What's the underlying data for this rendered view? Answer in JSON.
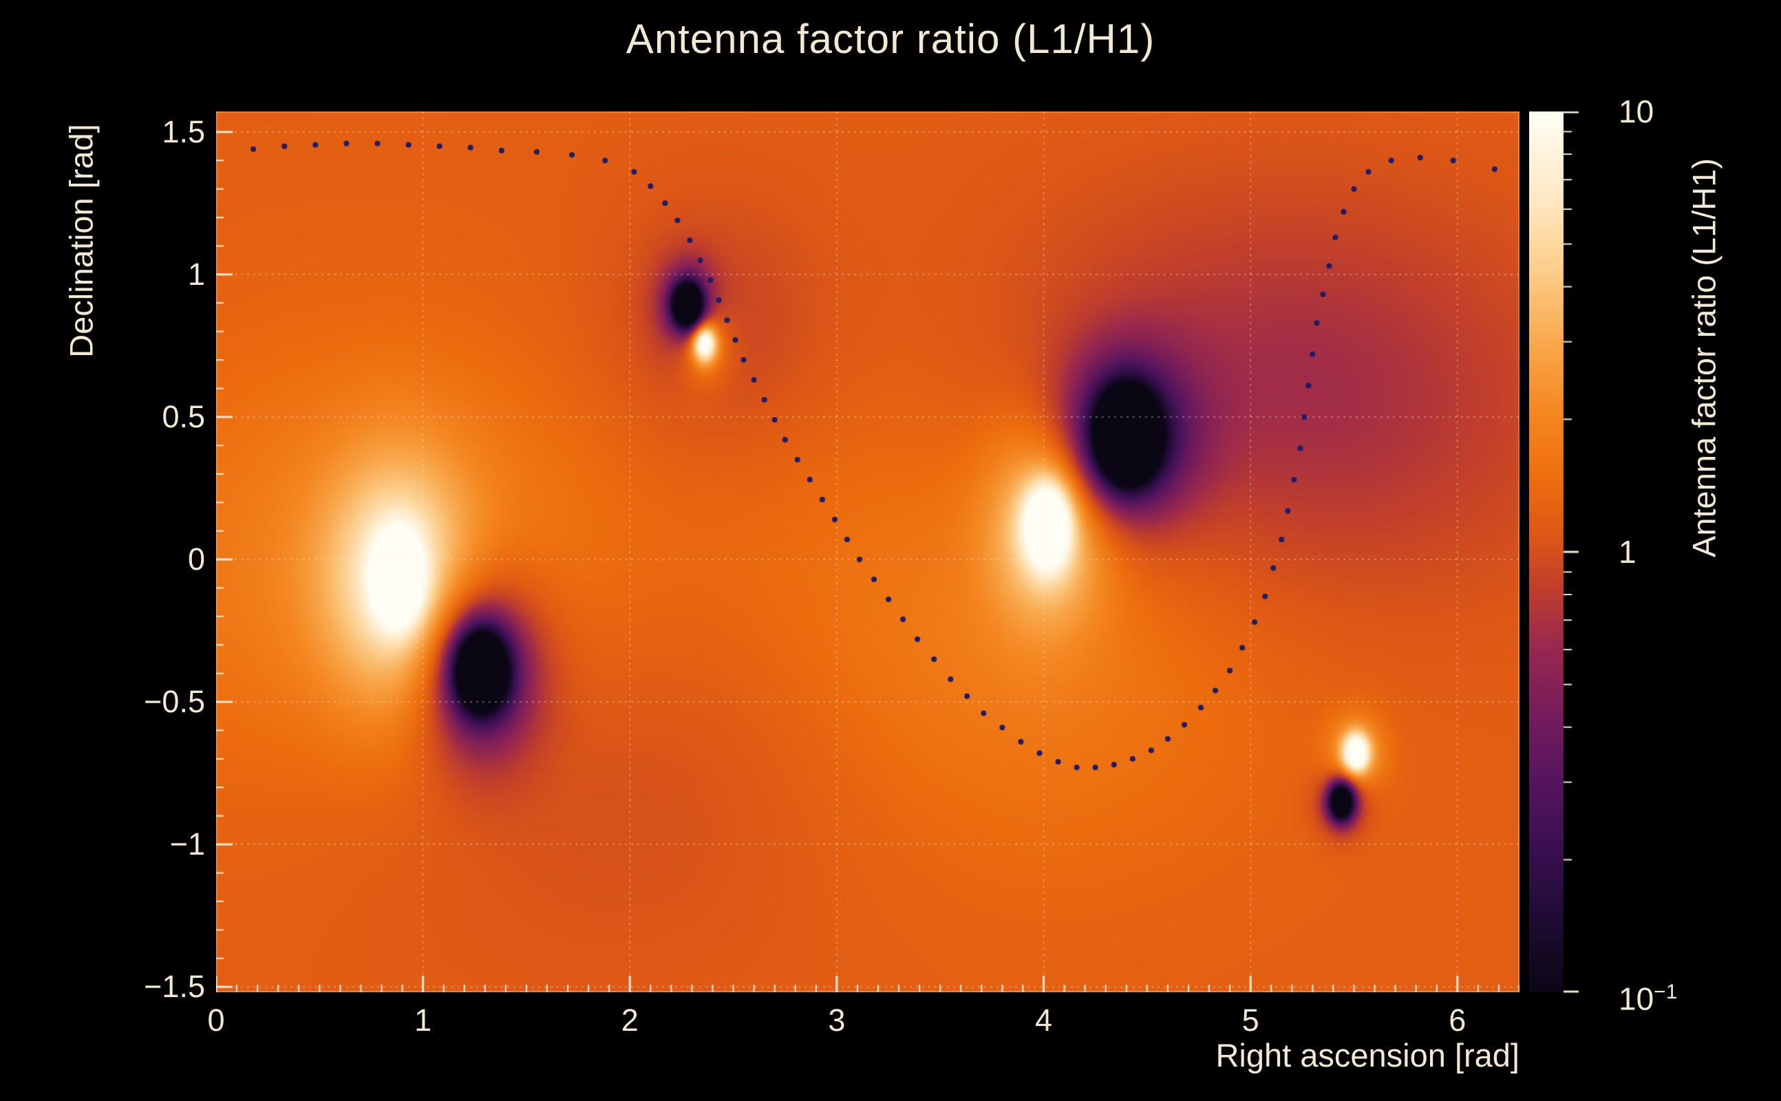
{
  "title": "Antenna factor ratio (L1/H1)",
  "colors": {
    "page_background": "#000000",
    "text": "#f2e9d4",
    "tick": "#f2e9d4",
    "grid": "#fff3dc",
    "frame": "rgba(242,233,212,0.28)",
    "track_dot": "#1f1c66"
  },
  "chart_data": {
    "type": "heatmap",
    "title": "Antenna factor ratio (L1/H1)",
    "xlabel": "Right ascension [rad]",
    "ylabel": "Declination [rad]",
    "zlabel": "Antenna factor ratio (L1/H1)",
    "x_range": [
      0,
      6.3
    ],
    "y_range": [
      -1.519,
      1.572
    ],
    "z_scale": "log10",
    "z_range": [
      0.1,
      10
    ],
    "grid": true,
    "x_ticks": [
      {
        "v": 0,
        "label": "0"
      },
      {
        "v": 1,
        "label": "1"
      },
      {
        "v": 2,
        "label": "2"
      },
      {
        "v": 3,
        "label": "3"
      },
      {
        "v": 4,
        "label": "4"
      },
      {
        "v": 5,
        "label": "5"
      },
      {
        "v": 6,
        "label": "6"
      }
    ],
    "y_ticks": [
      {
        "v": 1.5,
        "label": "1.5"
      },
      {
        "v": 1,
        "label": "1"
      },
      {
        "v": 0.5,
        "label": "0.5"
      },
      {
        "v": 0,
        "label": "0"
      },
      {
        "v": -0.5,
        "label": "−0.5"
      },
      {
        "v": -1,
        "label": "−1"
      },
      {
        "v": -1.5,
        "label": "−1.5"
      }
    ],
    "x_minor_step": 0.1,
    "y_minor_step": 0.1,
    "colorbar_ticks": [
      {
        "log": 1,
        "base": "10",
        "exp": ""
      },
      {
        "log": 0,
        "base": "1",
        "exp": ""
      },
      {
        "log": -1,
        "base": "10",
        "exp": "−1"
      }
    ],
    "colormap": [
      [
        0.0,
        "#0b0614"
      ],
      [
        0.08,
        "#1d0c31"
      ],
      [
        0.16,
        "#38104f"
      ],
      [
        0.24,
        "#55155e"
      ],
      [
        0.32,
        "#771d5b"
      ],
      [
        0.4,
        "#9c2a4c"
      ],
      [
        0.46,
        "#c13f2c"
      ],
      [
        0.52,
        "#dd5716"
      ],
      [
        0.58,
        "#ec6c0e"
      ],
      [
        0.66,
        "#f48822"
      ],
      [
        0.74,
        "#f9a94e"
      ],
      [
        0.82,
        "#fccd8a"
      ],
      [
        0.9,
        "#fee8c4"
      ],
      [
        1.0,
        "#fffdf4"
      ]
    ],
    "field": {
      "base_log10": 0.08,
      "clamp_log10": [
        -1,
        1
      ],
      "features": [
        {
          "x": 0.8,
          "y": -0.05,
          "a": 0.22,
          "sx": 0.9,
          "sy": 0.55
        },
        {
          "x": 3.85,
          "y": -0.2,
          "a": 0.2,
          "sx": 0.95,
          "sy": 0.6
        },
        {
          "x": 5.1,
          "y": 0.55,
          "a": -0.3,
          "sx": 0.95,
          "sy": 0.5
        },
        {
          "x": 1.9,
          "y": -0.7,
          "a": -0.12,
          "sx": 0.9,
          "sy": 0.5
        },
        {
          "x": 2.4,
          "y": 0.8,
          "a": -0.15,
          "sx": 0.4,
          "sy": 0.33
        },
        {
          "x": 0.88,
          "y": -0.07,
          "a": 0.65,
          "sx": 0.25,
          "sy": 0.3
        },
        {
          "x": 0.88,
          "y": -0.07,
          "a": 0.95,
          "sx": 0.08,
          "sy": 0.11
        },
        {
          "x": 1.28,
          "y": -0.39,
          "a": -0.75,
          "sx": 0.2,
          "sy": 0.22
        },
        {
          "x": 1.28,
          "y": -0.39,
          "a": -1.7,
          "sx": 0.09,
          "sy": 0.1
        },
        {
          "x": 2.28,
          "y": 0.89,
          "a": -0.5,
          "sx": 0.1,
          "sy": 0.11
        },
        {
          "x": 2.28,
          "y": 0.89,
          "a": -1.6,
          "sx": 0.05,
          "sy": 0.055
        },
        {
          "x": 2.36,
          "y": 0.76,
          "a": 0.35,
          "sx": 0.09,
          "sy": 0.1
        },
        {
          "x": 2.36,
          "y": 0.76,
          "a": 1.05,
          "sx": 0.04,
          "sy": 0.046
        },
        {
          "x": 4.02,
          "y": 0.12,
          "a": 0.6,
          "sx": 0.2,
          "sy": 0.24
        },
        {
          "x": 4.02,
          "y": 0.12,
          "a": 1.05,
          "sx": 0.075,
          "sy": 0.1
        },
        {
          "x": 4.4,
          "y": 0.43,
          "a": -0.85,
          "sx": 0.22,
          "sy": 0.2
        },
        {
          "x": 4.4,
          "y": 0.43,
          "a": -1.75,
          "sx": 0.1,
          "sy": 0.11
        },
        {
          "x": 5.51,
          "y": -0.68,
          "a": 0.35,
          "sx": 0.1,
          "sy": 0.095
        },
        {
          "x": 5.51,
          "y": -0.68,
          "a": 1.0,
          "sx": 0.044,
          "sy": 0.048
        },
        {
          "x": 5.44,
          "y": -0.85,
          "a": -0.4,
          "sx": 0.085,
          "sy": 0.08
        },
        {
          "x": 5.44,
          "y": -0.85,
          "a": -1.5,
          "sx": 0.042,
          "sy": 0.046
        }
      ]
    },
    "track": {
      "color": "#1f1c66",
      "dot_radius": 4,
      "points": [
        [
          0.18,
          1.44
        ],
        [
          0.33,
          1.45
        ],
        [
          0.48,
          1.455
        ],
        [
          0.63,
          1.46
        ],
        [
          0.78,
          1.46
        ],
        [
          0.93,
          1.455
        ],
        [
          1.08,
          1.45
        ],
        [
          1.23,
          1.445
        ],
        [
          1.38,
          1.435
        ],
        [
          1.55,
          1.43
        ],
        [
          1.72,
          1.42
        ],
        [
          1.88,
          1.4
        ],
        [
          2.02,
          1.36
        ],
        [
          2.1,
          1.31
        ],
        [
          2.17,
          1.25
        ],
        [
          2.23,
          1.19
        ],
        [
          2.29,
          1.12
        ],
        [
          2.34,
          1.05
        ],
        [
          2.39,
          0.98
        ],
        [
          2.43,
          0.91
        ],
        [
          2.47,
          0.84
        ],
        [
          2.51,
          0.77
        ],
        [
          2.55,
          0.7
        ],
        [
          2.6,
          0.63
        ],
        [
          2.65,
          0.56
        ],
        [
          2.7,
          0.49
        ],
        [
          2.75,
          0.42
        ],
        [
          2.81,
          0.35
        ],
        [
          2.87,
          0.28
        ],
        [
          2.93,
          0.21
        ],
        [
          2.99,
          0.14
        ],
        [
          3.05,
          0.07
        ],
        [
          3.11,
          0.0
        ],
        [
          3.18,
          -0.07
        ],
        [
          3.25,
          -0.14
        ],
        [
          3.32,
          -0.21
        ],
        [
          3.39,
          -0.28
        ],
        [
          3.47,
          -0.35
        ],
        [
          3.55,
          -0.42
        ],
        [
          3.63,
          -0.48
        ],
        [
          3.71,
          -0.54
        ],
        [
          3.8,
          -0.59
        ],
        [
          3.89,
          -0.64
        ],
        [
          3.98,
          -0.68
        ],
        [
          4.07,
          -0.71
        ],
        [
          4.16,
          -0.73
        ],
        [
          4.25,
          -0.73
        ],
        [
          4.34,
          -0.72
        ],
        [
          4.43,
          -0.7
        ],
        [
          4.52,
          -0.67
        ],
        [
          4.6,
          -0.63
        ],
        [
          4.68,
          -0.58
        ],
        [
          4.76,
          -0.52
        ],
        [
          4.83,
          -0.46
        ],
        [
          4.9,
          -0.39
        ],
        [
          4.96,
          -0.31
        ],
        [
          5.02,
          -0.22
        ],
        [
          5.07,
          -0.13
        ],
        [
          5.11,
          -0.03
        ],
        [
          5.15,
          0.07
        ],
        [
          5.18,
          0.17
        ],
        [
          5.21,
          0.28
        ],
        [
          5.24,
          0.39
        ],
        [
          5.26,
          0.5
        ],
        [
          5.28,
          0.61
        ],
        [
          5.3,
          0.72
        ],
        [
          5.32,
          0.83
        ],
        [
          5.35,
          0.93
        ],
        [
          5.38,
          1.03
        ],
        [
          5.41,
          1.13
        ],
        [
          5.45,
          1.22
        ],
        [
          5.5,
          1.3
        ],
        [
          5.57,
          1.36
        ],
        [
          5.68,
          1.4
        ],
        [
          5.82,
          1.41
        ],
        [
          5.98,
          1.4
        ],
        [
          6.18,
          1.37
        ]
      ]
    }
  }
}
